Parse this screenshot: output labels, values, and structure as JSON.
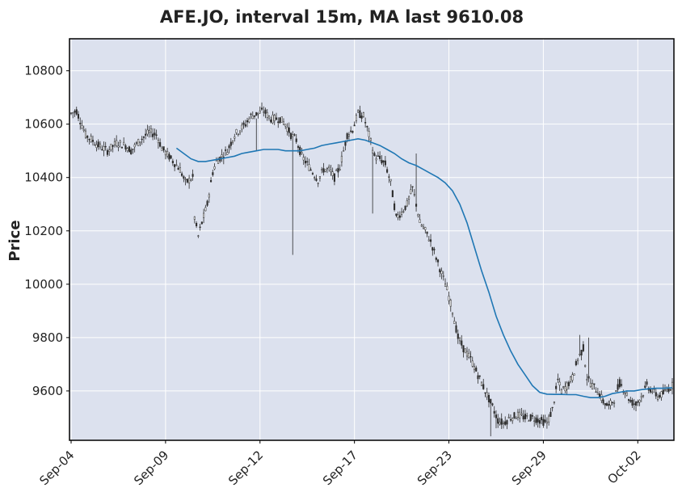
{
  "chart_data": {
    "type": "candlestick",
    "title": "AFE.JO, interval 15m, MA last 9610.08",
    "xlabel": "",
    "ylabel": "Price",
    "ylim": [
      9415,
      10920
    ],
    "y_ticks": [
      9600,
      9800,
      10000,
      10200,
      10400,
      10600,
      10800
    ],
    "x_ticks": [
      {
        "label": "Sep-04",
        "idx": 0
      },
      {
        "label": "Sep-09",
        "idx": 52
      },
      {
        "label": "Sep-12",
        "idx": 104
      },
      {
        "label": "Sep-17",
        "idx": 156
      },
      {
        "label": "Sep-23",
        "idx": 208
      },
      {
        "label": "Sep-29",
        "idx": 260
      },
      {
        "label": "Oct-02",
        "idx": 312
      }
    ],
    "x_range": [
      0,
      331
    ],
    "grid": true,
    "background_color": "#dce1ee",
    "candle_color": "#2b2b2b",
    "ma_color": "#1f77b4",
    "price_anchors": [
      [
        0,
        10640
      ],
      [
        3,
        10650
      ],
      [
        8,
        10560
      ],
      [
        15,
        10520
      ],
      [
        20,
        10500
      ],
      [
        25,
        10530
      ],
      [
        30,
        10520
      ],
      [
        33,
        10500
      ],
      [
        38,
        10540
      ],
      [
        43,
        10570
      ],
      [
        47,
        10560
      ],
      [
        50,
        10510
      ],
      [
        55,
        10470
      ],
      [
        60,
        10430
      ],
      [
        63,
        10380
      ],
      [
        67,
        10400
      ],
      [
        68,
        10250
      ],
      [
        70,
        10180
      ],
      [
        72,
        10230
      ],
      [
        75,
        10300
      ],
      [
        78,
        10420
      ],
      [
        80,
        10460
      ],
      [
        83,
        10480
      ],
      [
        86,
        10500
      ],
      [
        90,
        10560
      ],
      [
        93,
        10580
      ],
      [
        96,
        10600
      ],
      [
        99,
        10630
      ],
      [
        103,
        10640
      ],
      [
        106,
        10650
      ],
      [
        110,
        10620
      ],
      [
        115,
        10620
      ],
      [
        118,
        10600
      ],
      [
        121,
        10560
      ],
      [
        124,
        10540
      ],
      [
        127,
        10480
      ],
      [
        130,
        10450
      ],
      [
        133,
        10420
      ],
      [
        136,
        10390
      ],
      [
        139,
        10430
      ],
      [
        142,
        10430
      ],
      [
        145,
        10400
      ],
      [
        148,
        10440
      ],
      [
        152,
        10560
      ],
      [
        155,
        10580
      ],
      [
        158,
        10640
      ],
      [
        161,
        10630
      ],
      [
        164,
        10560
      ],
      [
        167,
        10480
      ],
      [
        170,
        10470
      ],
      [
        173,
        10450
      ],
      [
        176,
        10380
      ],
      [
        179,
        10250
      ],
      [
        182,
        10270
      ],
      [
        185,
        10300
      ],
      [
        188,
        10360
      ],
      [
        190,
        10300
      ],
      [
        192,
        10230
      ],
      [
        195,
        10200
      ],
      [
        198,
        10160
      ],
      [
        201,
        10100
      ],
      [
        204,
        10040
      ],
      [
        207,
        9980
      ],
      [
        210,
        9900
      ],
      [
        213,
        9800
      ],
      [
        216,
        9760
      ],
      [
        220,
        9720
      ],
      [
        224,
        9660
      ],
      [
        228,
        9600
      ],
      [
        232,
        9540
      ],
      [
        235,
        9490
      ],
      [
        238,
        9480
      ],
      [
        242,
        9500
      ],
      [
        246,
        9510
      ],
      [
        250,
        9500
      ],
      [
        254,
        9500
      ],
      [
        258,
        9490
      ],
      [
        262,
        9480
      ],
      [
        265,
        9530
      ],
      [
        268,
        9640
      ],
      [
        270,
        9600
      ],
      [
        273,
        9620
      ],
      [
        276,
        9650
      ],
      [
        279,
        9720
      ],
      [
        282,
        9760
      ],
      [
        284,
        9650
      ],
      [
        287,
        9620
      ],
      [
        290,
        9600
      ],
      [
        293,
        9560
      ],
      [
        296,
        9540
      ],
      [
        299,
        9570
      ],
      [
        302,
        9630
      ],
      [
        305,
        9600
      ],
      [
        308,
        9560
      ],
      [
        311,
        9550
      ],
      [
        314,
        9580
      ],
      [
        317,
        9620
      ],
      [
        320,
        9600
      ],
      [
        323,
        9580
      ],
      [
        326,
        9590
      ],
      [
        329,
        9610
      ],
      [
        331,
        9620
      ]
    ],
    "spikes": [
      {
        "idx": 122,
        "low": 10110
      },
      {
        "idx": 102,
        "high": 10500
      },
      {
        "idx": 166,
        "low": 10265
      },
      {
        "idx": 231,
        "low": 9430
      },
      {
        "idx": 234,
        "low": 9460
      },
      {
        "idx": 190,
        "high": 10490
      },
      {
        "idx": 280,
        "high": 9810
      },
      {
        "idx": 285,
        "high": 9800
      }
    ],
    "ma_series": {
      "name": "",
      "points": [
        [
          58,
          10510
        ],
        [
          62,
          10490
        ],
        [
          66,
          10470
        ],
        [
          70,
          10460
        ],
        [
          74,
          10460
        ],
        [
          78,
          10465
        ],
        [
          82,
          10470
        ],
        [
          86,
          10475
        ],
        [
          90,
          10480
        ],
        [
          94,
          10490
        ],
        [
          98,
          10495
        ],
        [
          102,
          10500
        ],
        [
          106,
          10505
        ],
        [
          110,
          10505
        ],
        [
          114,
          10505
        ],
        [
          118,
          10500
        ],
        [
          122,
          10500
        ],
        [
          126,
          10500
        ],
        [
          130,
          10505
        ],
        [
          134,
          10510
        ],
        [
          138,
          10520
        ],
        [
          142,
          10525
        ],
        [
          146,
          10530
        ],
        [
          150,
          10535
        ],
        [
          154,
          10540
        ],
        [
          158,
          10545
        ],
        [
          162,
          10540
        ],
        [
          166,
          10530
        ],
        [
          170,
          10520
        ],
        [
          174,
          10505
        ],
        [
          178,
          10490
        ],
        [
          182,
          10470
        ],
        [
          186,
          10455
        ],
        [
          190,
          10445
        ],
        [
          194,
          10430
        ],
        [
          198,
          10415
        ],
        [
          202,
          10400
        ],
        [
          206,
          10380
        ],
        [
          210,
          10350
        ],
        [
          214,
          10300
        ],
        [
          218,
          10230
        ],
        [
          222,
          10140
        ],
        [
          226,
          10050
        ],
        [
          230,
          9970
        ],
        [
          234,
          9880
        ],
        [
          238,
          9810
        ],
        [
          242,
          9750
        ],
        [
          246,
          9700
        ],
        [
          250,
          9660
        ],
        [
          254,
          9620
        ],
        [
          258,
          9595
        ],
        [
          262,
          9588
        ],
        [
          266,
          9587
        ],
        [
          270,
          9587
        ],
        [
          274,
          9586
        ],
        [
          278,
          9586
        ],
        [
          282,
          9580
        ],
        [
          286,
          9575
        ],
        [
          290,
          9575
        ],
        [
          294,
          9580
        ],
        [
          298,
          9590
        ],
        [
          302,
          9595
        ],
        [
          306,
          9600
        ],
        [
          310,
          9600
        ],
        [
          314,
          9605
        ],
        [
          318,
          9608
        ],
        [
          322,
          9610
        ],
        [
          326,
          9610
        ],
        [
          331,
          9612
        ]
      ]
    }
  }
}
